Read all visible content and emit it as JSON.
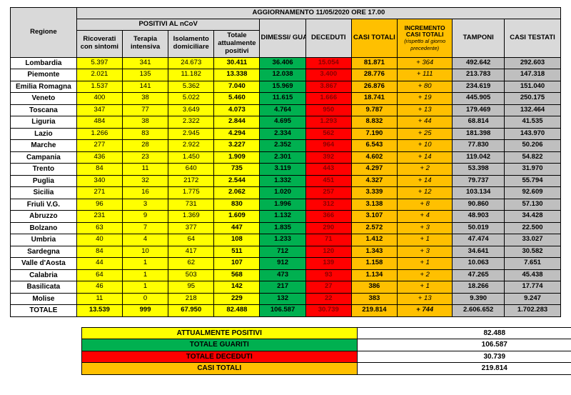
{
  "title": "AGGIORNAMENTO 11/05/2020 ORE 17.00",
  "headers": {
    "regione": "Regione",
    "positivi_group": "POSITIVI AL nCoV",
    "ricoverati": "Ricoverati con sintomi",
    "terapia": "Terapia intensiva",
    "isolamento": "Isolamento domiciliare",
    "totale_pos": "Totale attualmente positivi",
    "dimessi": "DIMESSI/ GUARITI",
    "deceduti": "DECEDUTI",
    "casi_totali": "CASI TOTALI",
    "incremento": "INCREMENTO CASI TOTALI",
    "incremento_sub": "(rispetto al giorno precedente)",
    "tamponi": "TAMPONI",
    "casi_testati": "CASI TESTATI"
  },
  "rows": [
    {
      "r": "Lombardia",
      "a": "5.397",
      "b": "341",
      "c": "24.673",
      "d": "30.411",
      "e": "36.406",
      "f": "15.054",
      "g": "81.871",
      "h": "+ 364",
      "i": "492.642",
      "j": "292.603"
    },
    {
      "r": "Piemonte",
      "a": "2.021",
      "b": "135",
      "c": "11.182",
      "d": "13.338",
      "e": "12.038",
      "f": "3.400",
      "g": "28.776",
      "h": "+ 111",
      "i": "213.783",
      "j": "147.318"
    },
    {
      "r": "Emilia Romagna",
      "a": "1.537",
      "b": "141",
      "c": "5.362",
      "d": "7.040",
      "e": "15.969",
      "f": "3.867",
      "g": "26.876",
      "h": "+ 80",
      "i": "234.619",
      "j": "151.040"
    },
    {
      "r": "Veneto",
      "a": "400",
      "b": "38",
      "c": "5.022",
      "d": "5.460",
      "e": "11.615",
      "f": "1.666",
      "g": "18.741",
      "h": "+ 19",
      "i": "445.905",
      "j": "250.175"
    },
    {
      "r": "Toscana",
      "a": "347",
      "b": "77",
      "c": "3.649",
      "d": "4.073",
      "e": "4.764",
      "f": "950",
      "g": "9.787",
      "h": "+ 13",
      "i": "179.469",
      "j": "132.464"
    },
    {
      "r": "Liguria",
      "a": "484",
      "b": "38",
      "c": "2.322",
      "d": "2.844",
      "e": "4.695",
      "f": "1.293",
      "g": "8.832",
      "h": "+ 44",
      "i": "68.814",
      "j": "41.535"
    },
    {
      "r": "Lazio",
      "a": "1.266",
      "b": "83",
      "c": "2.945",
      "d": "4.294",
      "e": "2.334",
      "f": "562",
      "g": "7.190",
      "h": "+ 25",
      "i": "181.398",
      "j": "143.970"
    },
    {
      "r": "Marche",
      "a": "277",
      "b": "28",
      "c": "2.922",
      "d": "3.227",
      "e": "2.352",
      "f": "964",
      "g": "6.543",
      "h": "+ 10",
      "i": "77.830",
      "j": "50.206"
    },
    {
      "r": "Campania",
      "a": "436",
      "b": "23",
      "c": "1.450",
      "d": "1.909",
      "e": "2.301",
      "f": "392",
      "g": "4.602",
      "h": "+ 14",
      "i": "119.042",
      "j": "54.822"
    },
    {
      "r": "Trento",
      "a": "84",
      "b": "11",
      "c": "640",
      "d": "735",
      "e": "3.119",
      "f": "443",
      "g": "4.297",
      "h": "+ 2",
      "i": "53.398",
      "j": "31.970"
    },
    {
      "r": "Puglia",
      "a": "340",
      "b": "32",
      "c": "2172",
      "d": "2.544",
      "e": "1.332",
      "f": "451",
      "g": "4.327",
      "h": "+ 14",
      "i": "79.737",
      "j": "55.794"
    },
    {
      "r": "Sicilia",
      "a": "271",
      "b": "16",
      "c": "1.775",
      "d": "2.062",
      "e": "1.020",
      "f": "257",
      "g": "3.339",
      "h": "+ 12",
      "i": "103.134",
      "j": "92.609"
    },
    {
      "r": "Friuli V.G.",
      "a": "96",
      "b": "3",
      "c": "731",
      "d": "830",
      "e": "1.996",
      "f": "312",
      "g": "3.138",
      "h": "+ 8",
      "i": "90.860",
      "j": "57.130"
    },
    {
      "r": "Abruzzo",
      "a": "231",
      "b": "9",
      "c": "1.369",
      "d": "1.609",
      "e": "1.132",
      "f": "366",
      "g": "3.107",
      "h": "+ 4",
      "i": "48.903",
      "j": "34.428"
    },
    {
      "r": "Bolzano",
      "a": "63",
      "b": "7",
      "c": "377",
      "d": "447",
      "e": "1.835",
      "f": "290",
      "g": "2.572",
      "h": "+ 3",
      "i": "50.019",
      "j": "22.500"
    },
    {
      "r": "Umbria",
      "a": "40",
      "b": "4",
      "c": "64",
      "d": "108",
      "e": "1.233",
      "f": "71",
      "g": "1.412",
      "h": "+ 1",
      "i": "47.474",
      "j": "33.027"
    },
    {
      "r": "Sardegna",
      "a": "84",
      "b": "10",
      "c": "417",
      "d": "511",
      "e": "712",
      "f": "120",
      "g": "1.343",
      "h": "+ 3",
      "i": "34.641",
      "j": "30.582"
    },
    {
      "r": "Valle d'Aosta",
      "a": "44",
      "b": "1",
      "c": "62",
      "d": "107",
      "e": "912",
      "f": "139",
      "g": "1.158",
      "h": "+ 1",
      "i": "10.063",
      "j": "7.651"
    },
    {
      "r": "Calabria",
      "a": "64",
      "b": "1",
      "c": "503",
      "d": "568",
      "e": "473",
      "f": "93",
      "g": "1.134",
      "h": "+ 2",
      "i": "47.265",
      "j": "45.438"
    },
    {
      "r": "Basilicata",
      "a": "46",
      "b": "1",
      "c": "95",
      "d": "142",
      "e": "217",
      "f": "27",
      "g": "386",
      "h": "+ 1",
      "i": "18.266",
      "j": "17.774"
    },
    {
      "r": "Molise",
      "a": "11",
      "b": "0",
      "c": "218",
      "d": "229",
      "e": "132",
      "f": "22",
      "g": "383",
      "h": "+ 13",
      "i": "9.390",
      "j": "9.247"
    }
  ],
  "total": {
    "r": "TOTALE",
    "a": "13.539",
    "b": "999",
    "c": "67.950",
    "d": "82.488",
    "e": "106.587",
    "f": "30.739",
    "g": "219.814",
    "h": "+ 744",
    "i": "2.606.652",
    "j": "1.702.283"
  },
  "summary": {
    "pos_label": "ATTUALMENTE POSITIVI",
    "pos_val": "82.488",
    "gua_label": "TOTALE GUARITI",
    "gua_val": "106.587",
    "dec_label": "TOTALE DECEDUTI",
    "dec_val": "30.739",
    "ct_label": "CASI TOTALI",
    "ct_val": "219.814"
  },
  "colors": {
    "yellow": "#ffff00",
    "green": "#00b050",
    "red": "#ff0000",
    "orange": "#ffc000",
    "grey": "#bfbfbf",
    "header": "#d9d9d9"
  }
}
